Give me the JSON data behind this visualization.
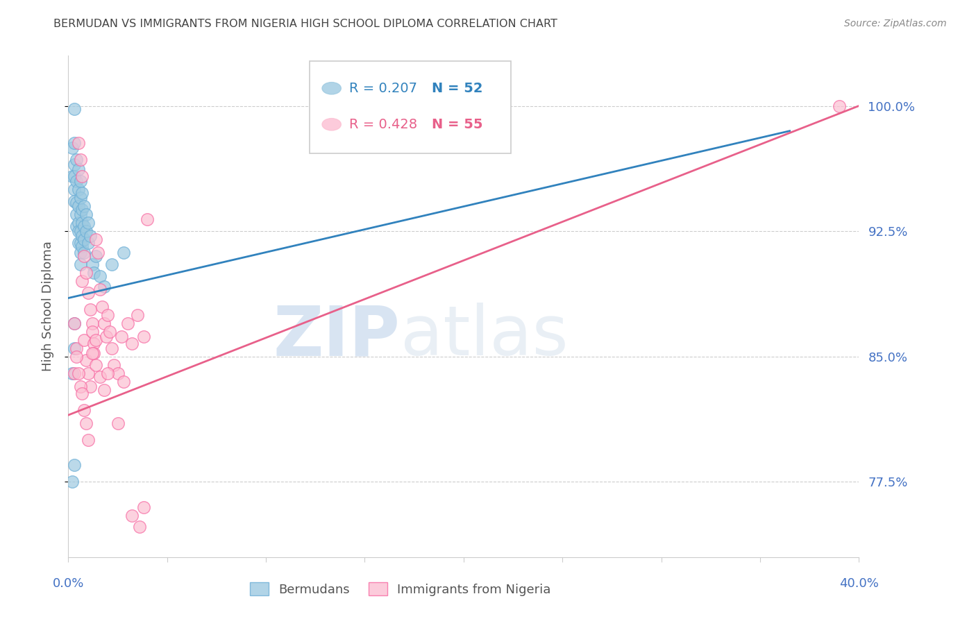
{
  "title": "BERMUDAN VS IMMIGRANTS FROM NIGERIA HIGH SCHOOL DIPLOMA CORRELATION CHART",
  "source": "Source: ZipAtlas.com",
  "ylabel": "High School Diploma",
  "yticks": [
    0.775,
    0.85,
    0.925,
    1.0
  ],
  "ytick_labels": [
    "77.5%",
    "85.0%",
    "92.5%",
    "100.0%"
  ],
  "xlim": [
    0.0,
    0.4
  ],
  "ylim": [
    0.73,
    1.03
  ],
  "watermark_zip": "ZIP",
  "watermark_atlas": "atlas",
  "legend_blue_r": "R = 0.207",
  "legend_blue_n": "N = 52",
  "legend_pink_r": "R = 0.428",
  "legend_pink_n": "N = 55",
  "legend_label_blue": "Bermudans",
  "legend_label_pink": "Immigrants from Nigeria",
  "blue_color": "#9ecae1",
  "pink_color": "#fcbfd2",
  "blue_edge_color": "#6baed6",
  "pink_edge_color": "#f768a1",
  "blue_line_color": "#3182bd",
  "pink_line_color": "#e8608a",
  "title_color": "#444444",
  "axis_label_color": "#4472c4",
  "grid_color": "#cccccc",
  "source_color": "#888888",
  "blue_line_x0": 0.0,
  "blue_line_x1": 0.365,
  "blue_line_y0": 0.885,
  "blue_line_y1": 0.985,
  "pink_line_x0": 0.0,
  "pink_line_x1": 0.4,
  "pink_line_y0": 0.815,
  "pink_line_y1": 1.0,
  "bermudans_x": [
    0.002,
    0.002,
    0.003,
    0.003,
    0.003,
    0.003,
    0.003,
    0.003,
    0.003,
    0.004,
    0.004,
    0.004,
    0.004,
    0.004,
    0.005,
    0.005,
    0.005,
    0.005,
    0.005,
    0.005,
    0.006,
    0.006,
    0.006,
    0.006,
    0.006,
    0.006,
    0.006,
    0.007,
    0.007,
    0.007,
    0.007,
    0.007,
    0.008,
    0.008,
    0.008,
    0.008,
    0.009,
    0.009,
    0.01,
    0.01,
    0.011,
    0.012,
    0.013,
    0.014,
    0.016,
    0.018,
    0.022,
    0.028,
    0.002,
    0.003,
    0.003,
    0.002
  ],
  "bermudans_y": [
    0.975,
    0.958,
    0.998,
    0.978,
    0.965,
    0.958,
    0.95,
    0.943,
    0.785,
    0.968,
    0.955,
    0.942,
    0.935,
    0.928,
    0.962,
    0.95,
    0.94,
    0.93,
    0.925,
    0.918,
    0.955,
    0.945,
    0.935,
    0.925,
    0.918,
    0.912,
    0.905,
    0.948,
    0.938,
    0.93,
    0.922,
    0.916,
    0.94,
    0.928,
    0.92,
    0.912,
    0.935,
    0.925,
    0.93,
    0.918,
    0.922,
    0.905,
    0.9,
    0.91,
    0.898,
    0.892,
    0.905,
    0.912,
    0.84,
    0.87,
    0.855,
    0.775
  ],
  "nigeria_x": [
    0.003,
    0.004,
    0.005,
    0.006,
    0.007,
    0.007,
    0.008,
    0.008,
    0.009,
    0.009,
    0.01,
    0.01,
    0.011,
    0.011,
    0.012,
    0.012,
    0.013,
    0.013,
    0.014,
    0.014,
    0.015,
    0.016,
    0.017,
    0.018,
    0.019,
    0.02,
    0.021,
    0.022,
    0.023,
    0.025,
    0.027,
    0.03,
    0.032,
    0.035,
    0.038,
    0.04,
    0.003,
    0.004,
    0.005,
    0.006,
    0.007,
    0.008,
    0.009,
    0.01,
    0.012,
    0.014,
    0.016,
    0.018,
    0.02,
    0.025,
    0.028,
    0.032,
    0.036,
    0.038,
    0.39
  ],
  "nigeria_y": [
    0.87,
    0.855,
    0.978,
    0.968,
    0.958,
    0.895,
    0.91,
    0.86,
    0.9,
    0.848,
    0.888,
    0.84,
    0.878,
    0.832,
    0.87,
    0.865,
    0.858,
    0.852,
    0.92,
    0.86,
    0.912,
    0.89,
    0.88,
    0.87,
    0.862,
    0.875,
    0.865,
    0.855,
    0.845,
    0.84,
    0.862,
    0.87,
    0.858,
    0.875,
    0.862,
    0.932,
    0.84,
    0.85,
    0.84,
    0.832,
    0.828,
    0.818,
    0.81,
    0.8,
    0.852,
    0.845,
    0.838,
    0.83,
    0.84,
    0.81,
    0.835,
    0.755,
    0.748,
    0.76,
    1.0
  ]
}
